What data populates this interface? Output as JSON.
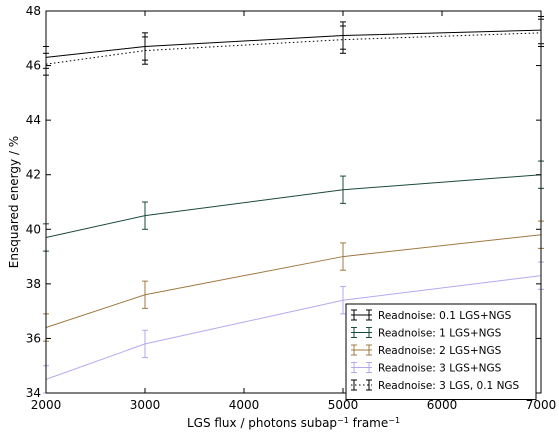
{
  "chart_data": {
    "type": "line",
    "title": "",
    "xlabel": {
      "main": "LGS flux / photons subap",
      "sup1": "−1",
      "mid": " frame",
      "sup2": "−1"
    },
    "ylabel": "Ensquared energy / %",
    "xlim": [
      2000,
      7000
    ],
    "ylim": [
      34,
      48
    ],
    "xticks": [
      "2000",
      "3000",
      "4000",
      "5000",
      "6000",
      "7000"
    ],
    "yticks": [
      "34",
      "36",
      "38",
      "40",
      "42",
      "44",
      "46",
      "48"
    ],
    "grid": false,
    "legend_position": "lower-right",
    "series": [
      {
        "name": "Readnoise: 0.1 LGS+NGS",
        "color": "#000000",
        "dash": "solid",
        "x": [
          2000,
          3000,
          5000,
          7000
        ],
        "y": [
          46.3,
          46.7,
          47.1,
          47.3
        ],
        "err": [
          0.4,
          0.5,
          0.5,
          0.5
        ]
      },
      {
        "name": "Readnoise: 1 LGS+NGS",
        "color": "#1a4a3a",
        "dash": "solid",
        "x": [
          2000,
          3000,
          5000,
          7000
        ],
        "y": [
          39.7,
          40.5,
          41.45,
          42.0
        ],
        "err": [
          0.5,
          0.5,
          0.5,
          0.5
        ]
      },
      {
        "name": "Readnoise: 2 LGS+NGS",
        "color": "#a07840",
        "dash": "solid",
        "x": [
          2000,
          3000,
          5000,
          7000
        ],
        "y": [
          36.4,
          37.6,
          39.0,
          39.8
        ],
        "err": [
          0.5,
          0.5,
          0.5,
          0.5
        ]
      },
      {
        "name": "Readnoise: 3 LGS+NGS",
        "color": "#b3aaee",
        "dash": "solid",
        "x": [
          2000,
          3000,
          5000,
          7000
        ],
        "y": [
          34.5,
          35.8,
          37.4,
          38.3
        ],
        "err": [
          0.5,
          0.5,
          0.5,
          0.5
        ]
      },
      {
        "name": "Readnoise: 3 LGS, 0.1 NGS",
        "color": "#000000",
        "dash": "dotted",
        "x": [
          2000,
          3000,
          5000,
          7000
        ],
        "y": [
          46.05,
          46.55,
          46.95,
          47.2
        ],
        "err": [
          0.4,
          0.5,
          0.5,
          0.5
        ]
      }
    ]
  }
}
